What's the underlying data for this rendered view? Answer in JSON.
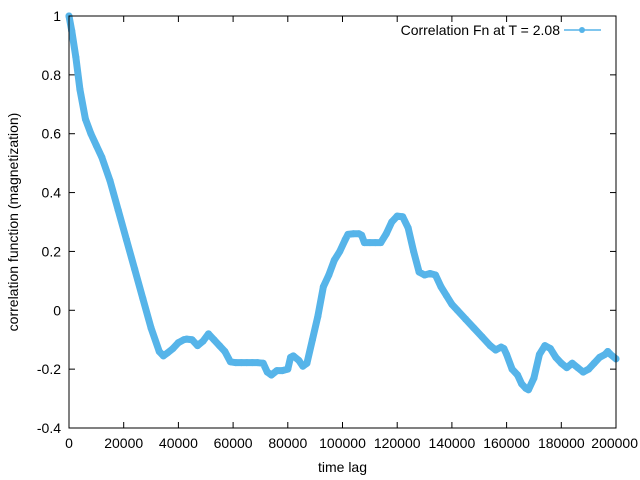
{
  "chart_data": {
    "type": "line",
    "title": "",
    "xlabel": "time lag",
    "ylabel": "correlation function (magnetization)",
    "xlim": [
      0,
      200000
    ],
    "ylim": [
      -0.4,
      1.0
    ],
    "x_ticks": [
      0,
      20000,
      40000,
      60000,
      80000,
      100000,
      120000,
      140000,
      160000,
      180000,
      200000
    ],
    "y_ticks": [
      -0.4,
      -0.2,
      0,
      0.2,
      0.4,
      0.6,
      0.8,
      1
    ],
    "x_tick_labels": [
      "0",
      "20000",
      "40000",
      "60000",
      "80000",
      "100000",
      "120000",
      "140000",
      "160000",
      "180000",
      "200000"
    ],
    "y_tick_labels": [
      "-0.4",
      "-0.2",
      "0",
      "0.2",
      "0.4",
      "0.6",
      "0.8",
      "1"
    ],
    "grid": false,
    "legend_position": "top-right",
    "series": [
      {
        "name": "Correlation Fn at T = 2.08",
        "color": "#56b4e9",
        "x": [
          0,
          1000,
          2500,
          4000,
          6000,
          8000,
          10000,
          12000,
          15000,
          18000,
          21000,
          24000,
          27000,
          30000,
          33000,
          34500,
          36000,
          38000,
          40000,
          42000,
          43000,
          45000,
          47000,
          49000,
          51000,
          53000,
          55000,
          57000,
          59000,
          61000,
          63000,
          65000,
          67000,
          69000,
          71000,
          72500,
          74000,
          76000,
          78000,
          80000,
          81000,
          82000,
          84000,
          85500,
          87000,
          89000,
          91000,
          93000,
          95000,
          97000,
          99000,
          101000,
          102000,
          104000,
          106000,
          107000,
          108000,
          110000,
          112000,
          114000,
          116000,
          118000,
          120000,
          122000,
          124000,
          126000,
          128000,
          130000,
          132000,
          134000,
          136000,
          138000,
          140000,
          142000,
          145000,
          148000,
          151000,
          154000,
          156000,
          158000,
          159000,
          160000,
          162000,
          164000,
          165500,
          167000,
          168000,
          170000,
          172000,
          174000,
          176000,
          178000,
          180000,
          182000,
          184000,
          186000,
          188000,
          190000,
          192000,
          194000,
          196000,
          197000,
          198000,
          200000
        ],
        "y": [
          1.0,
          0.95,
          0.86,
          0.75,
          0.65,
          0.6,
          0.56,
          0.52,
          0.44,
          0.34,
          0.24,
          0.14,
          0.04,
          -0.06,
          -0.14,
          -0.155,
          -0.145,
          -0.13,
          -0.11,
          -0.1,
          -0.098,
          -0.1,
          -0.12,
          -0.105,
          -0.08,
          -0.1,
          -0.12,
          -0.14,
          -0.175,
          -0.178,
          -0.178,
          -0.178,
          -0.178,
          -0.178,
          -0.18,
          -0.21,
          -0.22,
          -0.205,
          -0.205,
          -0.2,
          -0.16,
          -0.155,
          -0.17,
          -0.19,
          -0.18,
          -0.1,
          -0.02,
          0.08,
          0.12,
          0.17,
          0.2,
          0.24,
          0.258,
          0.26,
          0.26,
          0.255,
          0.23,
          0.23,
          0.23,
          0.23,
          0.26,
          0.3,
          0.32,
          0.318,
          0.28,
          0.2,
          0.13,
          0.12,
          0.125,
          0.12,
          0.08,
          0.05,
          0.02,
          0.0,
          -0.03,
          -0.06,
          -0.09,
          -0.12,
          -0.135,
          -0.125,
          -0.13,
          -0.15,
          -0.2,
          -0.22,
          -0.25,
          -0.265,
          -0.27,
          -0.23,
          -0.15,
          -0.12,
          -0.13,
          -0.16,
          -0.18,
          -0.195,
          -0.18,
          -0.195,
          -0.21,
          -0.2,
          -0.18,
          -0.16,
          -0.15,
          -0.14,
          -0.15,
          -0.165
        ]
      }
    ]
  }
}
